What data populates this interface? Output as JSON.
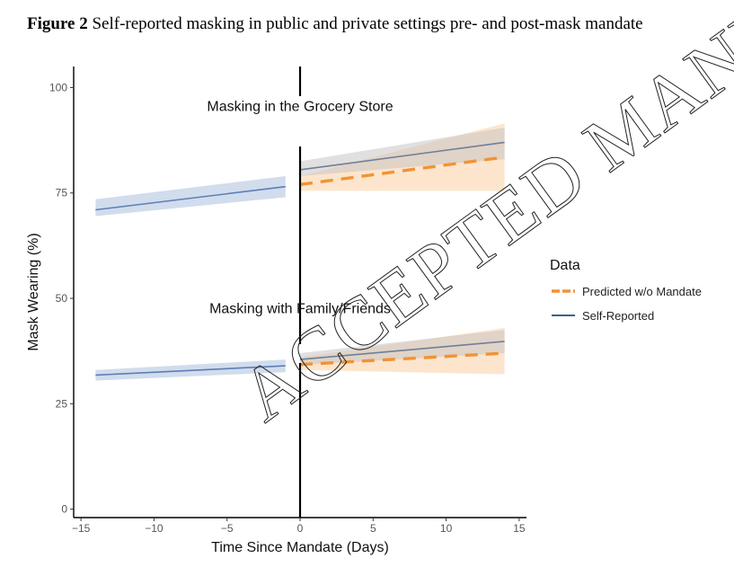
{
  "caption": {
    "figure_label": "Figure 2",
    "text": "Self-reported masking in public and private settings pre- and post-mask mandate"
  },
  "watermark": "ACCEPTED MANUSCRIPT",
  "colors": {
    "self_reported": "#5b7fb5",
    "self_reported_post": "#6e7f98",
    "self_reported_band": "#c9d6ea",
    "predicted": "#f39233",
    "predicted_band": "#fde0c4",
    "axis": "#000000"
  },
  "chart_data": {
    "type": "line",
    "xlabel": "Time Since Mandate (Days)",
    "ylabel": "Mask Wearing (%)",
    "xlim": [
      -15.5,
      15.5
    ],
    "ylim": [
      -2,
      105
    ],
    "x_ticks": [
      -15,
      -10,
      -5,
      0,
      5,
      10,
      15
    ],
    "x_tick_labels": [
      "−15",
      "−10",
      "−5",
      "0",
      "5",
      "10",
      "15"
    ],
    "y_ticks": [
      0,
      25,
      50,
      75,
      100
    ],
    "y_tick_labels": [
      "0",
      "25",
      "50",
      "75",
      "100"
    ],
    "mandate_x": 0,
    "grid": false,
    "legend": {
      "title": "Data",
      "placement": "right",
      "entries": [
        {
          "label": "Predicted w/o Mandate",
          "style": "dashed",
          "color": "#f39233"
        },
        {
          "label": "Self-Reported",
          "style": "solid",
          "color": "#3e5f8f"
        }
      ]
    },
    "panels": [
      {
        "label": "Masking in the Grocery Store",
        "label_x": 0,
        "label_y": 94.5,
        "pre": {
          "x": [
            -14,
            -1
          ],
          "y": [
            71,
            76.5
          ],
          "lower": [
            69.5,
            74
          ],
          "upper": [
            73.5,
            79
          ]
        },
        "post_reported": {
          "x": [
            0,
            14
          ],
          "y": [
            80.5,
            87
          ],
          "lower": [
            79,
            83
          ],
          "upper": [
            82.5,
            90.5
          ]
        },
        "post_predicted": {
          "x": [
            0,
            14
          ],
          "y": [
            77,
            83.5
          ],
          "lower": [
            75.5,
            75.5
          ],
          "upper": [
            79,
            91.5
          ]
        }
      },
      {
        "label": "Masking with Family/Friends",
        "label_x": 0,
        "label_y": 46.5,
        "pre": {
          "x": [
            -14,
            -1
          ],
          "y": [
            31.8,
            34
          ],
          "lower": [
            30.5,
            32.5
          ],
          "upper": [
            33,
            35.5
          ]
        },
        "post_reported": {
          "x": [
            0,
            14
          ],
          "y": [
            35.5,
            39.8
          ],
          "lower": [
            34.2,
            37
          ],
          "upper": [
            37,
            42.5
          ]
        },
        "post_predicted": {
          "x": [
            0,
            14
          ],
          "y": [
            34.3,
            37
          ],
          "lower": [
            33,
            32
          ],
          "upper": [
            36,
            43
          ]
        }
      }
    ]
  }
}
